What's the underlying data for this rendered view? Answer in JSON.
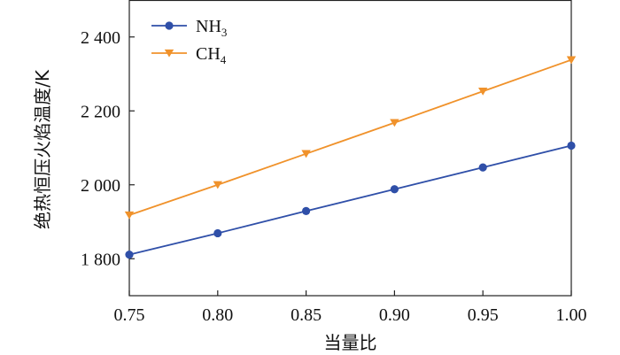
{
  "chart_data": {
    "type": "line",
    "xlabel": "当量比",
    "ylabel": "绝热恒压火焰温度/K",
    "xlim": [
      0.75,
      1.0
    ],
    "ylim": [
      1700,
      2500
    ],
    "xticks": [
      0.75,
      0.8,
      0.85,
      0.9,
      0.95,
      1.0
    ],
    "xtick_labels": [
      "0.75",
      "0.80",
      "0.85",
      "0.90",
      "0.95",
      "1.00"
    ],
    "yticks": [
      1800,
      2000,
      2200,
      2400
    ],
    "ytick_labels": [
      "1 800",
      "2 000",
      "2 200",
      "2 400"
    ],
    "grid": false,
    "legend_position": "top-left",
    "series": [
      {
        "name": "NH3",
        "legend_main": "NH",
        "legend_sub": "3",
        "color": "#2f4fa8",
        "marker": "circle",
        "x": [
          0.75,
          0.8,
          0.85,
          0.9,
          0.95,
          1.0
        ],
        "y": [
          1811,
          1869,
          1929,
          1988,
          2047,
          2106
        ]
      },
      {
        "name": "CH4",
        "legend_main": "CH",
        "legend_sub": "4",
        "color": "#f0922b",
        "marker": "triangle-down",
        "x": [
          0.75,
          0.8,
          0.85,
          0.9,
          0.95,
          1.0
        ],
        "y": [
          1918,
          2000,
          2084,
          2168,
          2253,
          2338
        ]
      }
    ]
  }
}
